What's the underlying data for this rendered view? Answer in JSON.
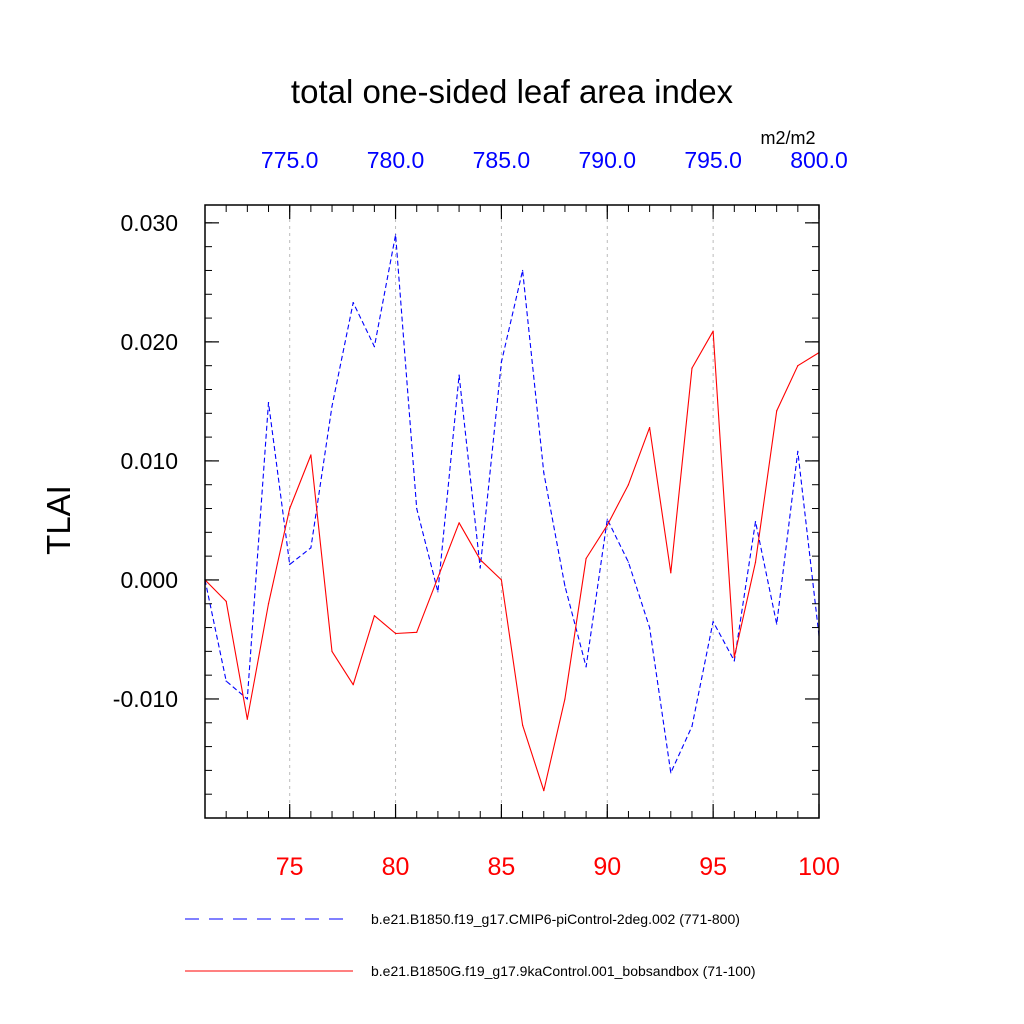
{
  "chart_data": {
    "type": "line",
    "title": "total one-sided leaf area index",
    "units": "m2/m2",
    "ylabel": "TLAI",
    "ylim": [
      -0.02,
      0.0315
    ],
    "y_ticks": [
      {
        "value": -0.01,
        "label": "-0.010"
      },
      {
        "value": 0.0,
        "label": "0.000"
      },
      {
        "value": 0.01,
        "label": "0.010"
      },
      {
        "value": 0.02,
        "label": "0.020"
      },
      {
        "value": 0.03,
        "label": "0.030"
      }
    ],
    "y_minor_step": 0.002,
    "bottom_axis": {
      "color": "#ff0000",
      "range": [
        71,
        100
      ],
      "ticks": [
        {
          "value": 75,
          "label": "75"
        },
        {
          "value": 80,
          "label": "80"
        },
        {
          "value": 85,
          "label": "85"
        },
        {
          "value": 90,
          "label": "90"
        },
        {
          "value": 95,
          "label": "95"
        },
        {
          "value": 100,
          "label": "100"
        }
      ]
    },
    "top_axis": {
      "color": "#0000ff",
      "range": [
        771,
        800
      ],
      "ticks": [
        {
          "value": 775,
          "label": "775.0"
        },
        {
          "value": 780,
          "label": "780.0"
        },
        {
          "value": 785,
          "label": "785.0"
        },
        {
          "value": 790,
          "label": "790.0"
        },
        {
          "value": 795,
          "label": "795.0"
        },
        {
          "value": 800,
          "label": "800.0"
        }
      ]
    },
    "grid": "vertical dashed at major ticks",
    "series": [
      {
        "name": "b.e21.B1850.f19_g17.CMIP6-piControl-2deg.002 (771-800)",
        "color": "#0000ff",
        "style": "dashed",
        "x": [
          771,
          772,
          773,
          774,
          775,
          776,
          777,
          778,
          779,
          780,
          781,
          782,
          783,
          784,
          785,
          786,
          787,
          788,
          789,
          790,
          791,
          792,
          793,
          794,
          795,
          796,
          797,
          798,
          799,
          800
        ],
        "values": [
          0.0,
          -0.0085,
          -0.01,
          0.0149,
          0.0013,
          0.0027,
          0.0146,
          0.0233,
          0.0196,
          0.029,
          0.006,
          -0.001,
          0.0172,
          0.001,
          0.0183,
          0.026,
          0.009,
          -0.0005,
          -0.0073,
          0.0051,
          0.0015,
          -0.004,
          -0.0162,
          -0.0123,
          -0.0035,
          -0.0068,
          0.0049,
          -0.0037,
          0.0108,
          -0.0047
        ]
      },
      {
        "name": "b.e21.B1850G.f19_g17.9kaControl.001_bobsandbox (71-100)",
        "color": "#ff0000",
        "style": "solid",
        "x": [
          71,
          72,
          73,
          74,
          75,
          76,
          77,
          78,
          79,
          80,
          81,
          82,
          83,
          84,
          85,
          86,
          87,
          88,
          89,
          90,
          91,
          92,
          93,
          94,
          95,
          96,
          97,
          98,
          99,
          100
        ],
        "values": [
          0.0,
          -0.0018,
          -0.0117,
          -0.002,
          0.006,
          0.0105,
          -0.006,
          -0.0088,
          -0.003,
          -0.0045,
          -0.0044,
          0.0002,
          0.0048,
          0.0017,
          0.0,
          -0.0122,
          -0.0177,
          -0.01,
          0.0018,
          0.0046,
          0.008,
          0.0128,
          0.0006,
          0.0178,
          0.0209,
          -0.0065,
          0.0015,
          0.0142,
          0.018,
          0.0191
        ]
      }
    ]
  }
}
